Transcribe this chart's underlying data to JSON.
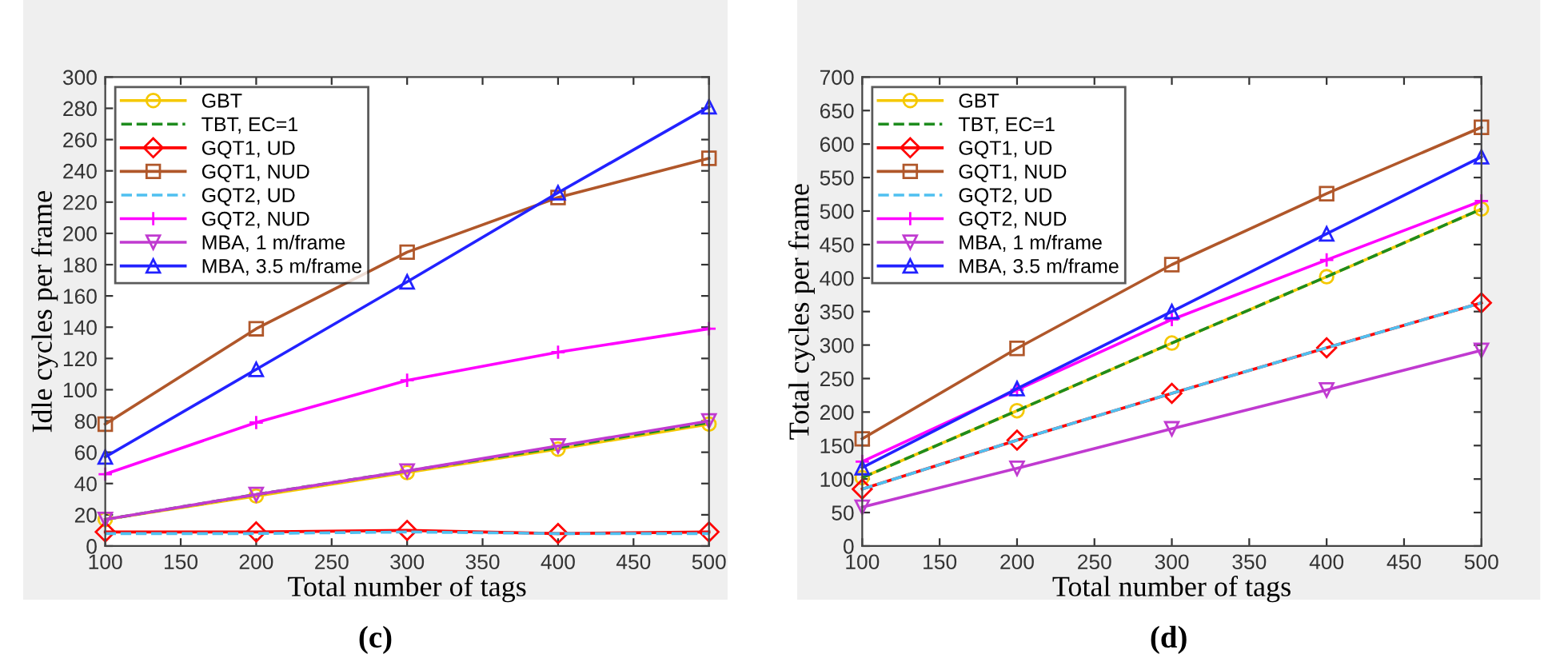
{
  "chart_data": [
    {
      "type": "line",
      "xlabel": "Total number of tags",
      "ylabel": "Idle cycles per frame",
      "annotations": [
        "(c)"
      ],
      "x": [
        100,
        200,
        300,
        400,
        500
      ],
      "xlim": [
        100,
        500
      ],
      "xticks": [
        100,
        150,
        200,
        250,
        300,
        350,
        400,
        450,
        500
      ],
      "ylim": [
        0,
        300
      ],
      "yticks": [
        0,
        20,
        40,
        60,
        80,
        100,
        120,
        140,
        160,
        180,
        200,
        220,
        240,
        260,
        280,
        300
      ],
      "grid": false,
      "legend": "top left",
      "series": [
        {
          "name": "GBT",
          "color": "#f5c800",
          "marker": "circle",
          "line_style": "solid",
          "values": [
            17,
            32,
            47,
            62,
            78
          ]
        },
        {
          "name": "TBT, EC=1",
          "color": "#1e8c1e",
          "marker": "none",
          "line_style": "dashed",
          "values": [
            17,
            33,
            48,
            63,
            79
          ]
        },
        {
          "name": "GQT1, UD",
          "color": "#ff0000",
          "marker": "diamond",
          "line_style": "solid",
          "values": [
            9,
            9,
            10,
            8,
            9
          ]
        },
        {
          "name": "GQT1, NUD",
          "color": "#b0572a",
          "marker": "square",
          "line_style": "solid",
          "values": [
            78,
            139,
            188,
            223,
            248
          ]
        },
        {
          "name": "GQT2, UD",
          "color": "#4fc0f0",
          "marker": "none",
          "line_style": "dashed",
          "values": [
            8,
            8,
            9,
            8,
            8
          ]
        },
        {
          "name": "GQT2, NUD",
          "color": "#ff00ff",
          "marker": "cross",
          "line_style": "solid",
          "values": [
            46,
            79,
            106,
            124,
            139
          ]
        },
        {
          "name": "MBA, 1 m/frame",
          "color": "#c03ad0",
          "marker": "triangle-down",
          "line_style": "solid",
          "values": [
            17,
            33,
            48,
            64,
            80
          ]
        },
        {
          "name": "MBA, 3.5 m/frame",
          "color": "#2222ff",
          "marker": "triangle",
          "line_style": "solid",
          "values": [
            57,
            113,
            169,
            226,
            281
          ]
        }
      ]
    },
    {
      "type": "line",
      "xlabel": "Total number of tags",
      "ylabel": "Total cycles per frame",
      "annotations": [
        "(d)"
      ],
      "x": [
        100,
        200,
        300,
        400,
        500
      ],
      "xlim": [
        100,
        500
      ],
      "xticks": [
        100,
        150,
        200,
        250,
        300,
        350,
        400,
        450,
        500
      ],
      "ylim": [
        0,
        700
      ],
      "yticks": [
        0,
        50,
        100,
        150,
        200,
        250,
        300,
        350,
        400,
        450,
        500,
        550,
        600,
        650,
        700
      ],
      "grid": false,
      "legend": "top left",
      "series": [
        {
          "name": "GBT",
          "color": "#f5c800",
          "marker": "circle",
          "line_style": "solid",
          "values": [
            102,
            202,
            303,
            402,
            503
          ]
        },
        {
          "name": "TBT, EC=1",
          "color": "#1e8c1e",
          "marker": "none",
          "line_style": "dashed",
          "values": [
            102,
            202,
            303,
            402,
            503
          ]
        },
        {
          "name": "GQT1, UD",
          "color": "#ff0000",
          "marker": "diamond",
          "line_style": "solid",
          "values": [
            85,
            158,
            228,
            296,
            363
          ]
        },
        {
          "name": "GQT1, NUD",
          "color": "#b0572a",
          "marker": "square",
          "line_style": "solid",
          "values": [
            160,
            295,
            420,
            526,
            625
          ]
        },
        {
          "name": "GQT2, UD",
          "color": "#4fc0f0",
          "marker": "none",
          "line_style": "dashed",
          "values": [
            85,
            158,
            228,
            296,
            363
          ]
        },
        {
          "name": "GQT2, NUD",
          "color": "#ff00ff",
          "marker": "cross",
          "line_style": "solid",
          "values": [
            126,
            233,
            338,
            427,
            515
          ]
        },
        {
          "name": "MBA, 1 m/frame",
          "color": "#c03ad0",
          "marker": "triangle-down",
          "line_style": "solid",
          "values": [
            58,
            116,
            175,
            233,
            292
          ]
        },
        {
          "name": "MBA, 3.5 m/frame",
          "color": "#2222ff",
          "marker": "triangle",
          "line_style": "solid",
          "values": [
            117,
            235,
            350,
            466,
            581
          ]
        }
      ]
    }
  ]
}
